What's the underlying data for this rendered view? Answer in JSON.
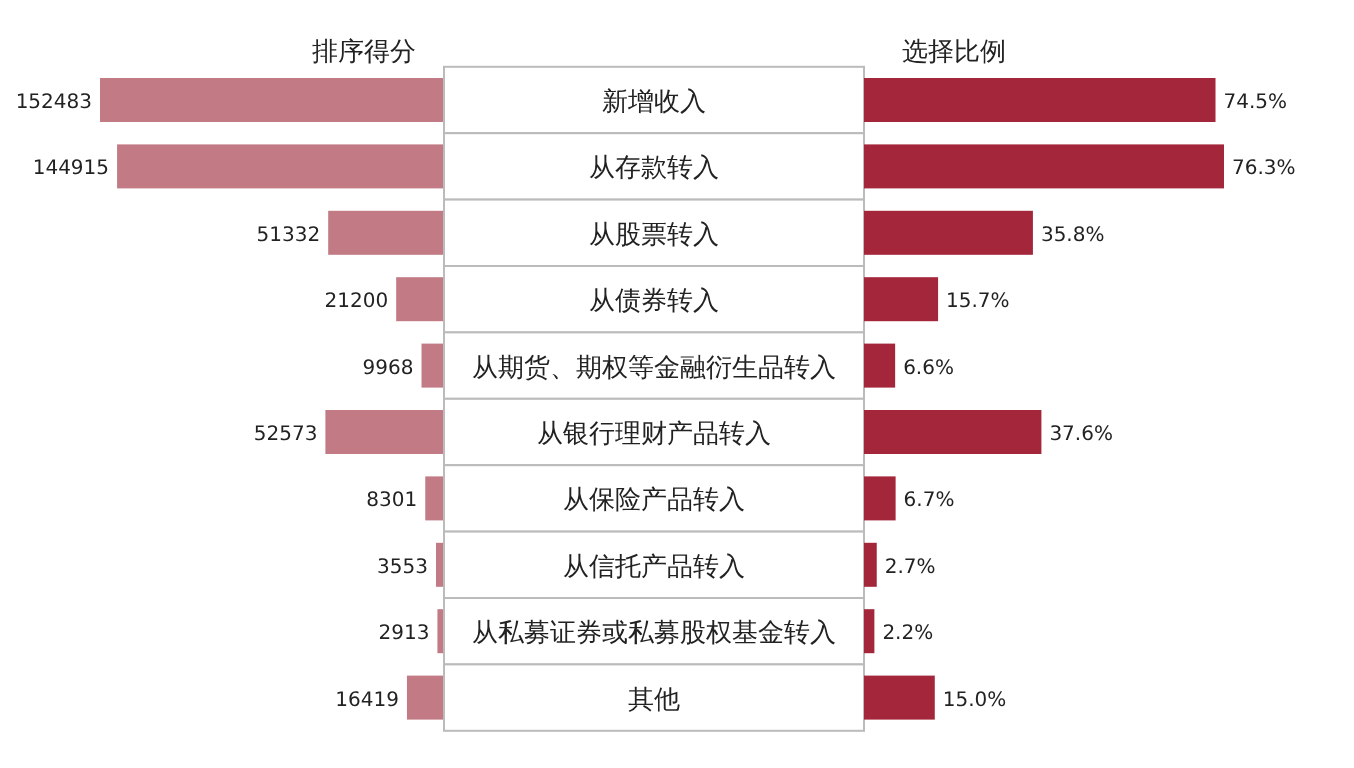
{
  "chart_data": [
    {
      "type": "bar",
      "orientation": "horizontal",
      "title": "排序得分",
      "categories": [
        "新增收入",
        "从存款转入",
        "从股票转入",
        "从债券转入",
        "从期货、期权等金融衍生品转入",
        "从银行理财产品转入",
        "从保险产品转入",
        "从信托产品转入",
        "从私募证券或私募股权基金转入",
        "其他"
      ],
      "values": [
        152483,
        144915,
        51332,
        21200,
        9968,
        52573,
        8301,
        3553,
        2913,
        16419
      ],
      "color": "#c27a84",
      "data_labels": true
    },
    {
      "type": "bar",
      "orientation": "horizontal",
      "title": "选择比例",
      "categories": [
        null,
        null,
        null,
        null,
        null,
        null,
        null,
        null,
        null,
        null
      ],
      "values": [
        74.5,
        76.3,
        35.8,
        15.7,
        6.6,
        37.6,
        6.7,
        2.7,
        2.2,
        15.0
      ],
      "value_labels": [
        "74.5%",
        "76.3%",
        "35.8%",
        "15.7%",
        "6.6%",
        "37.6%",
        "6.7%",
        "2.7%",
        "2.2%",
        "15.0%"
      ],
      "color": "#a3263a"
    }
  ]
}
